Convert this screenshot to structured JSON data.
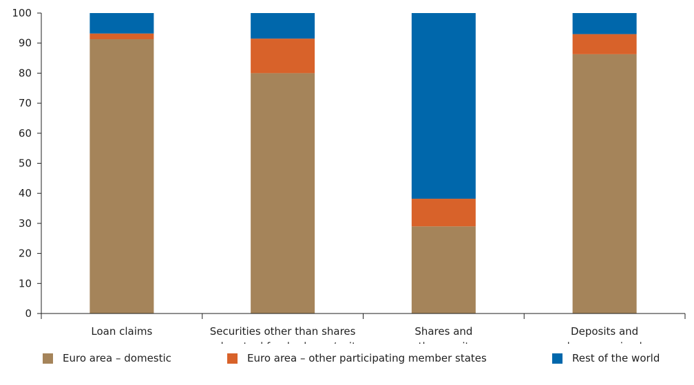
{
  "chart_data": {
    "type": "bar",
    "stacked": true,
    "categories": [
      [
        "Loan claims"
      ],
      [
        "Securities other than shares",
        "and mutual funds shares/units"
      ],
      [
        "Shares and",
        "other equity"
      ],
      [
        "Deposits and",
        "loans received"
      ]
    ],
    "series": [
      {
        "name": "Euro area – domestic",
        "color": "#a5845a",
        "values": [
          91.3,
          80.0,
          29.0,
          86.3
        ]
      },
      {
        "name": "Euro area – other participating member states",
        "color": "#d8622a",
        "values": [
          1.9,
          11.5,
          9.2,
          6.7
        ]
      },
      {
        "name": "Rest of the world",
        "color": "#0067ab",
        "values": [
          6.8,
          8.5,
          61.8,
          7.0
        ]
      }
    ],
    "ylim": [
      0,
      100
    ],
    "yticks": [
      0,
      10,
      20,
      30,
      40,
      50,
      60,
      70,
      80,
      90,
      100
    ],
    "grid": false,
    "legend": "bottom"
  }
}
